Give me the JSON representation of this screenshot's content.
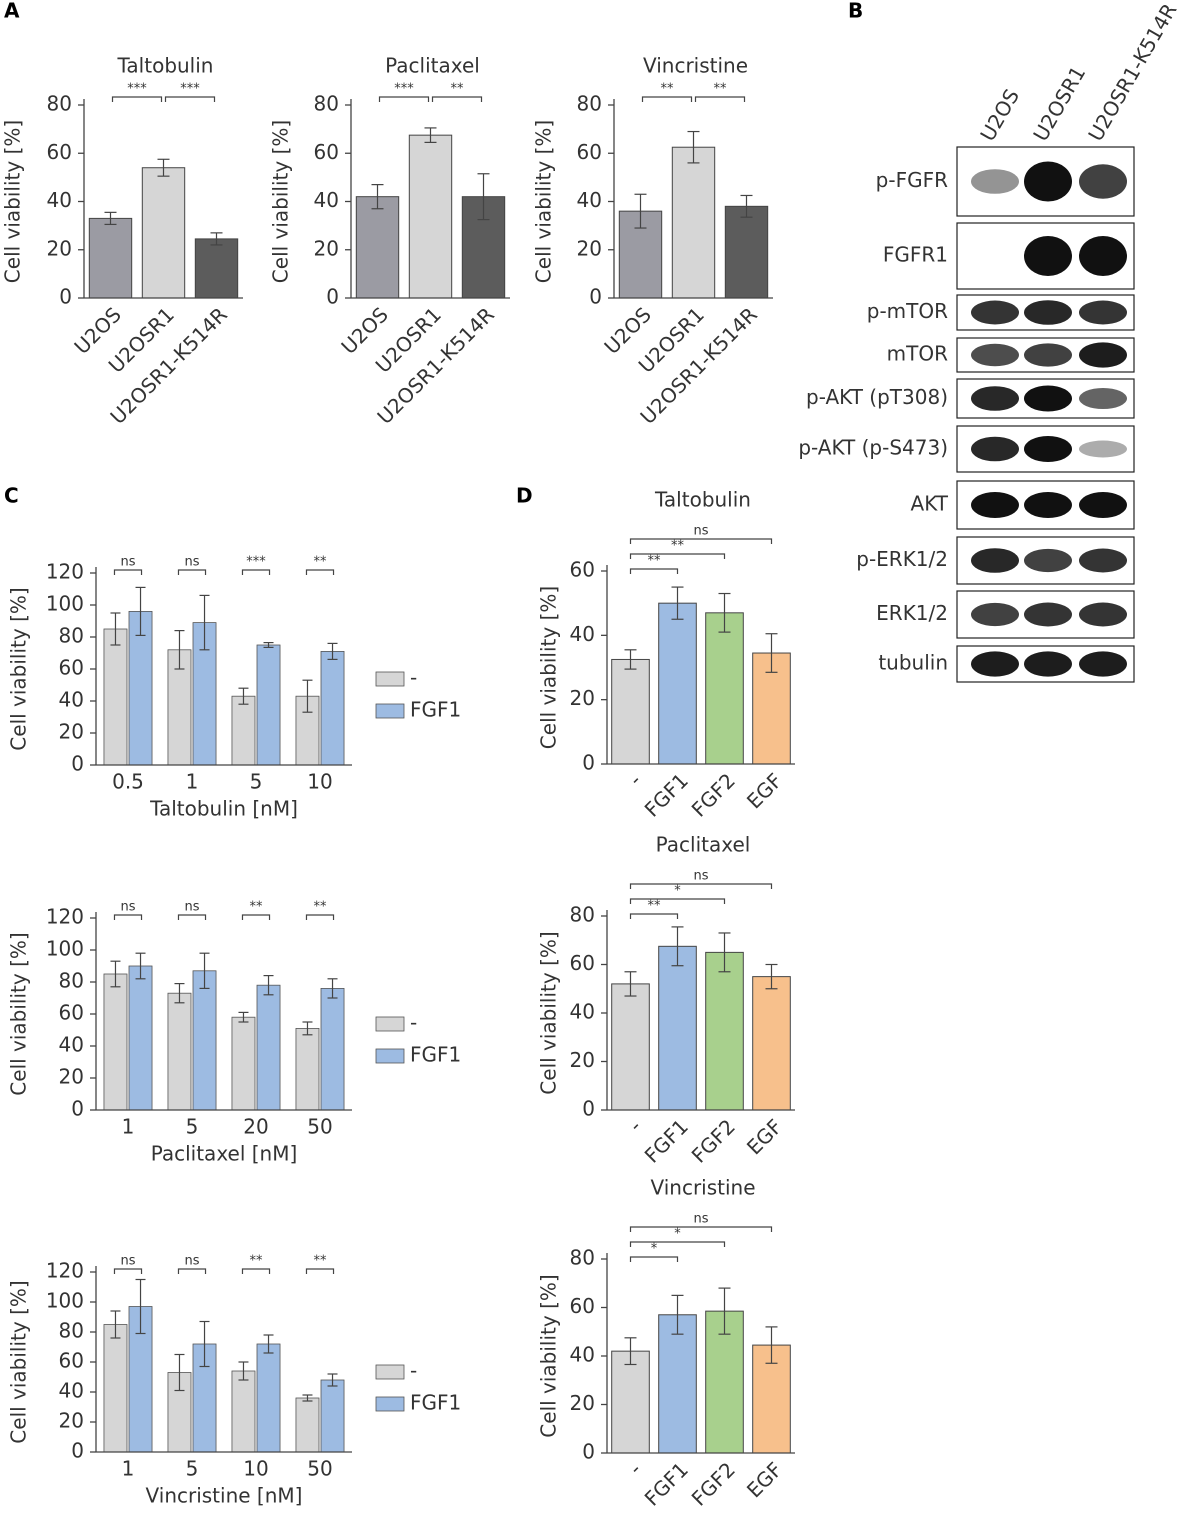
{
  "panel_labels": [
    "A",
    "B",
    "C",
    "D"
  ],
  "blot": {
    "lanes": [
      "U2OS",
      "U2OSR1",
      "U2OSR1-K514R"
    ],
    "rows": [
      "p-FGFR",
      "FGFR1",
      "p-mTOR",
      "mTOR",
      "p-AKT (pT308)",
      "p-AKT (p-S473)",
      "AKT",
      "p-ERK1/2",
      "ERK1/2",
      "tubulin"
    ]
  },
  "chart_data": [
    {
      "type": "bar",
      "title": "Taltobulin",
      "ylabel": "Cell viability [%]",
      "categories": [
        "U2OS",
        "U2OSR1",
        "U2OSR1-K514R"
      ],
      "values": [
        33,
        54,
        24.5
      ],
      "errors": [
        2.5,
        3.5,
        2.5
      ],
      "colors": [
        "#9b9ba3",
        "#d6d6d6",
        "#5c5c5c"
      ],
      "ylim": [
        0,
        80
      ],
      "yticks": [
        0,
        20,
        40,
        60,
        80
      ],
      "significance": [
        {
          "pair": [
            0,
            1
          ],
          "label": "***"
        },
        {
          "pair": [
            1,
            2
          ],
          "label": "***"
        }
      ]
    },
    {
      "type": "bar",
      "title": "Paclitaxel",
      "ylabel": "Cell viability [%]",
      "categories": [
        "U2OS",
        "U2OSR1",
        "U2OSR1-K514R"
      ],
      "values": [
        42,
        67.5,
        42
      ],
      "errors": [
        5,
        3,
        9.5
      ],
      "colors": [
        "#9b9ba3",
        "#d6d6d6",
        "#5c5c5c"
      ],
      "ylim": [
        0,
        80
      ],
      "yticks": [
        0,
        20,
        40,
        60,
        80
      ],
      "significance": [
        {
          "pair": [
            0,
            1
          ],
          "label": "***"
        },
        {
          "pair": [
            1,
            2
          ],
          "label": "**"
        }
      ]
    },
    {
      "type": "bar",
      "title": "Vincristine",
      "ylabel": "Cell viability [%]",
      "categories": [
        "U2OS",
        "U2OSR1",
        "U2OSR1-K514R"
      ],
      "values": [
        36,
        62.5,
        38
      ],
      "errors": [
        7,
        6.5,
        4.5
      ],
      "colors": [
        "#9b9ba3",
        "#d6d6d6",
        "#5c5c5c"
      ],
      "ylim": [
        0,
        80
      ],
      "yticks": [
        0,
        20,
        40,
        60,
        80
      ],
      "significance": [
        {
          "pair": [
            0,
            1
          ],
          "label": "**"
        },
        {
          "pair": [
            1,
            2
          ],
          "label": "**"
        }
      ]
    },
    {
      "type": "grouped-bar",
      "xlabel": "Taltobulin [nM]",
      "ylabel": "Cell viability [%]",
      "categories": [
        "0.5",
        "1",
        "5",
        "10"
      ],
      "series": [
        {
          "name": "-",
          "color": "#d6d6d6",
          "values": [
            85,
            72,
            43,
            43
          ],
          "errors": [
            10,
            12,
            5,
            10
          ]
        },
        {
          "name": "FGF1",
          "color": "#9dbbe2",
          "values": [
            96,
            89,
            75,
            71
          ],
          "errors": [
            15,
            17,
            1.5,
            5
          ]
        }
      ],
      "ylim": [
        0,
        120
      ],
      "yticks": [
        0,
        20,
        40,
        60,
        80,
        100,
        120
      ],
      "significance": [
        "ns",
        "ns",
        "***",
        "**"
      ]
    },
    {
      "type": "grouped-bar",
      "xlabel": "Paclitaxel [nM]",
      "ylabel": "Cell viability [%]",
      "categories": [
        "1",
        "5",
        "20",
        "50"
      ],
      "series": [
        {
          "name": "-",
          "color": "#d6d6d6",
          "values": [
            85,
            73,
            58,
            51
          ],
          "errors": [
            8,
            6,
            3,
            4
          ]
        },
        {
          "name": "FGF1",
          "color": "#9dbbe2",
          "values": [
            90,
            87,
            78,
            76
          ],
          "errors": [
            8,
            11,
            6,
            6
          ]
        }
      ],
      "ylim": [
        0,
        120
      ],
      "yticks": [
        0,
        20,
        40,
        60,
        80,
        100,
        120
      ],
      "significance": [
        "ns",
        "ns",
        "**",
        "**"
      ]
    },
    {
      "type": "grouped-bar",
      "xlabel": "Vincristine [nM]",
      "ylabel": "Cell viability [%]",
      "categories": [
        "1",
        "5",
        "10",
        "50"
      ],
      "series": [
        {
          "name": "-",
          "color": "#d6d6d6",
          "values": [
            85,
            53,
            54,
            36
          ],
          "errors": [
            9,
            12,
            6,
            2
          ]
        },
        {
          "name": "FGF1",
          "color": "#9dbbe2",
          "values": [
            97,
            72,
            72,
            48
          ],
          "errors": [
            18,
            15,
            6,
            4
          ]
        }
      ],
      "ylim": [
        0,
        120
      ],
      "yticks": [
        0,
        20,
        40,
        60,
        80,
        100,
        120
      ],
      "significance": [
        "ns",
        "ns",
        "**",
        "**"
      ]
    },
    {
      "type": "bar",
      "title": "Taltobulin",
      "ylabel": "Cell viability [%]",
      "categories": [
        "-",
        "FGF1",
        "FGF2",
        "EGF"
      ],
      "values": [
        32.5,
        50,
        47,
        34.5
      ],
      "errors": [
        3,
        5,
        6,
        6
      ],
      "colors": [
        "#d6d6d6",
        "#9dbbe2",
        "#a8d08d",
        "#f7c08c"
      ],
      "ylim": [
        0,
        60
      ],
      "yticks": [
        0,
        20,
        40,
        60
      ],
      "significance": [
        {
          "pair": [
            0,
            1
          ],
          "label": "**"
        },
        {
          "pair": [
            0,
            2
          ],
          "label": "**"
        },
        {
          "pair": [
            0,
            3
          ],
          "label": "ns"
        }
      ]
    },
    {
      "type": "bar",
      "title": "Paclitaxel",
      "ylabel": "Cell viability [%]",
      "categories": [
        "-",
        "FGF1",
        "FGF2",
        "EGF"
      ],
      "values": [
        52,
        67.5,
        65,
        55
      ],
      "errors": [
        5,
        8,
        8,
        5
      ],
      "colors": [
        "#d6d6d6",
        "#9dbbe2",
        "#a8d08d",
        "#f7c08c"
      ],
      "ylim": [
        0,
        80
      ],
      "yticks": [
        0,
        20,
        40,
        60,
        80
      ],
      "significance": [
        {
          "pair": [
            0,
            1
          ],
          "label": "**"
        },
        {
          "pair": [
            0,
            2
          ],
          "label": "*"
        },
        {
          "pair": [
            0,
            3
          ],
          "label": "ns"
        }
      ]
    },
    {
      "type": "bar",
      "title": "Vincristine",
      "ylabel": "Cell viability [%]",
      "categories": [
        "-",
        "FGF1",
        "FGF2",
        "EGF"
      ],
      "values": [
        42,
        57,
        58.5,
        44.5
      ],
      "errors": [
        5.5,
        8,
        9.5,
        7.5
      ],
      "colors": [
        "#d6d6d6",
        "#9dbbe2",
        "#a8d08d",
        "#f7c08c"
      ],
      "ylim": [
        0,
        80
      ],
      "yticks": [
        0,
        20,
        40,
        60,
        80
      ],
      "significance": [
        {
          "pair": [
            0,
            1
          ],
          "label": "*"
        },
        {
          "pair": [
            0,
            2
          ],
          "label": "*"
        },
        {
          "pair": [
            0,
            3
          ],
          "label": "ns"
        }
      ]
    }
  ]
}
